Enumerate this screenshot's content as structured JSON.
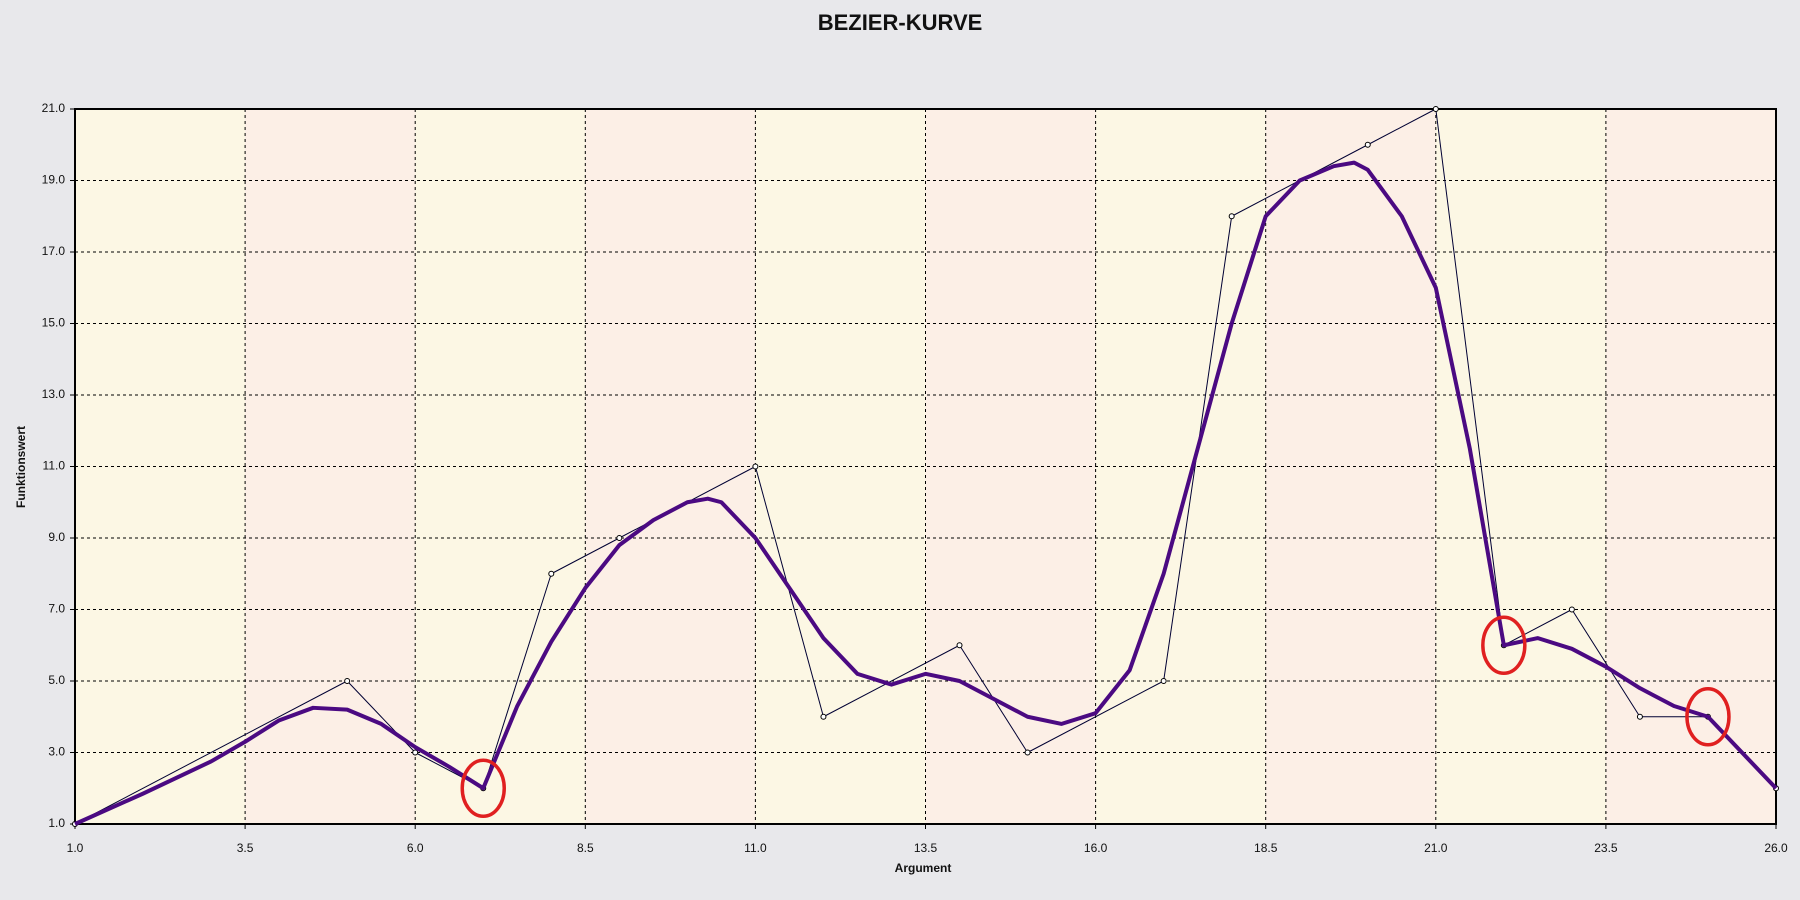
{
  "chart_data": {
    "type": "line",
    "title": "BEZIER-KURVE",
    "x_label": "Argument",
    "y_label": "Funktionswert",
    "xlim": [
      1,
      26
    ],
    "ylim": [
      1,
      21
    ],
    "xticks": [
      {
        "value": 1,
        "label": "1.0"
      },
      {
        "value": 3.5,
        "label": "3.5"
      },
      {
        "value": 6,
        "label": "6.0"
      },
      {
        "value": 8.5,
        "label": "8.5"
      },
      {
        "value": 11,
        "label": "11.0"
      },
      {
        "value": 13.5,
        "label": "13.5"
      },
      {
        "value": 16,
        "label": "16.0"
      },
      {
        "value": 18.5,
        "label": "18.5"
      },
      {
        "value": 21,
        "label": "21.0"
      },
      {
        "value": 23.5,
        "label": "23.5"
      },
      {
        "value": 26,
        "label": "26.0"
      }
    ],
    "yticks": [
      {
        "value": 1,
        "label": "1.0"
      },
      {
        "value": 3,
        "label": "3.0"
      },
      {
        "value": 5,
        "label": "5.0"
      },
      {
        "value": 7,
        "label": "7.0"
      },
      {
        "value": 9,
        "label": "9.0"
      },
      {
        "value": 11,
        "label": "11.0"
      },
      {
        "value": 13,
        "label": "13.0"
      },
      {
        "value": 15,
        "label": "15.0"
      },
      {
        "value": 17,
        "label": "17.0"
      },
      {
        "value": 19,
        "label": "19.0"
      },
      {
        "value": 21,
        "label": "21.0"
      }
    ],
    "grid": true,
    "band_colors": [
      "#fcf7e4",
      "#fcefe6"
    ],
    "series": [
      {
        "color": "#000033",
        "width": 1,
        "markers": true,
        "x": [
          1,
          5,
          6,
          7,
          8,
          9,
          11,
          12,
          14,
          15,
          17,
          18,
          20,
          21,
          22,
          23,
          24,
          25,
          26
        ],
        "values": [
          1,
          5,
          3,
          2,
          8,
          9,
          11,
          4,
          6,
          3,
          5,
          18,
          20,
          21,
          6,
          7,
          4,
          4,
          2
        ]
      },
      {
        "color": "#4b0a82",
        "width": 4,
        "markers": false,
        "x": [
          1,
          2,
          3,
          3.5,
          4,
          4.5,
          5,
          5.5,
          6,
          6.5,
          7,
          7.5,
          8,
          8.5,
          9,
          9.5,
          10,
          10.3,
          10.5,
          11,
          11.5,
          12,
          12.5,
          13,
          13.5,
          14,
          14.5,
          15,
          15.5,
          16,
          16.5,
          17,
          17.5,
          18,
          18.5,
          19,
          19.5,
          19.8,
          20,
          20.5,
          21,
          21.5,
          22,
          22.5,
          23,
          23.5,
          24,
          24.5,
          25,
          25.5,
          26
        ],
        "values": [
          1,
          1.85,
          2.75,
          3.3,
          3.9,
          4.25,
          4.2,
          3.8,
          3.15,
          2.6,
          2.0,
          4.3,
          6.1,
          7.6,
          8.8,
          9.5,
          10.0,
          10.1,
          10.0,
          9.0,
          7.6,
          6.2,
          5.2,
          4.9,
          5.2,
          5.0,
          4.5,
          4.0,
          3.8,
          4.1,
          5.3,
          8.0,
          11.5,
          15.0,
          18.0,
          19.0,
          19.4,
          19.5,
          19.3,
          18.0,
          16.0,
          11.5,
          6.0,
          6.2,
          5.9,
          5.4,
          4.8,
          4.3,
          4.0,
          3.0,
          2.0
        ]
      }
    ],
    "circles": {
      "color": "#e02020",
      "x": [
        7,
        22,
        25
      ],
      "values": [
        2,
        6,
        4
      ]
    }
  }
}
